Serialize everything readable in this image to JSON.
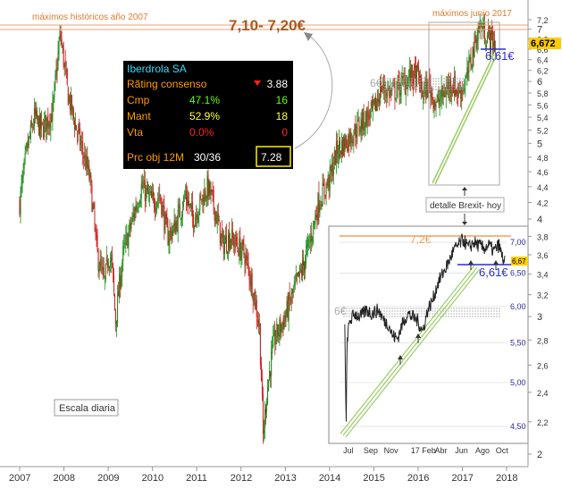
{
  "chart_data": [
    {
      "type": "candlestick",
      "description_title": "Iberdrola SA daily price",
      "x_ticks": [
        "2007",
        "2008",
        "2009",
        "2010",
        "2011",
        "2012",
        "2013",
        "2014",
        "2015",
        "2016",
        "2017",
        "2018"
      ],
      "y_ticks": [
        "2",
        "2,2",
        "2,4",
        "2,6",
        "2,8",
        "3",
        "3,2",
        "3,4",
        "3,6",
        "3,8",
        "4",
        "4,2",
        "4,4",
        "4,6",
        "4,8",
        "5",
        "5,2",
        "5,4",
        "5,6",
        "5,8",
        "6",
        "6,2",
        "6,4",
        "6,6",
        "6,8",
        "7",
        "7,2"
      ],
      "y_scale": "log",
      "ylim": [
        2.0,
        7.3
      ],
      "last_price_label": "6,672",
      "close_path": [
        [
          "2007-01",
          4.2
        ],
        [
          "2007-03",
          4.9
        ],
        [
          "2007-05",
          5.4
        ],
        [
          "2007-07",
          5.2
        ],
        [
          "2007-10",
          5.5
        ],
        [
          "2007-12",
          6.9
        ],
        [
          "2008-02",
          5.8
        ],
        [
          "2008-04",
          5.3
        ],
        [
          "2008-06",
          4.9
        ],
        [
          "2008-08",
          4.5
        ],
        [
          "2008-10",
          3.6
        ],
        [
          "2008-12",
          3.3
        ],
        [
          "2009-01",
          3.6
        ],
        [
          "2009-02",
          3.5
        ],
        [
          "2009-03",
          2.95
        ],
        [
          "2009-05",
          3.6
        ],
        [
          "2009-07",
          3.9
        ],
        [
          "2009-10",
          4.4
        ],
        [
          "2010-01",
          4.2
        ],
        [
          "2010-03",
          4.3
        ],
        [
          "2010-05",
          3.8
        ],
        [
          "2010-07",
          3.9
        ],
        [
          "2010-10",
          4.3
        ],
        [
          "2010-12",
          4.0
        ],
        [
          "2011-02",
          4.2
        ],
        [
          "2011-04",
          4.4
        ],
        [
          "2011-06",
          4.1
        ],
        [
          "2011-08",
          3.7
        ],
        [
          "2011-10",
          3.8
        ],
        [
          "2011-12",
          3.7
        ],
        [
          "2012-02",
          3.6
        ],
        [
          "2012-04",
          3.3
        ],
        [
          "2012-06",
          2.9
        ],
        [
          "2012-07",
          2.1
        ],
        [
          "2012-08",
          2.4
        ],
        [
          "2012-10",
          2.8
        ],
        [
          "2013-01",
          3.0
        ],
        [
          "2013-03",
          3.2
        ],
        [
          "2013-05",
          3.4
        ],
        [
          "2013-06",
          3.5
        ],
        [
          "2013-08",
          3.8
        ],
        [
          "2013-10",
          4.2
        ],
        [
          "2014-01",
          4.5
        ],
        [
          "2014-03",
          4.9
        ],
        [
          "2014-05",
          5.0
        ],
        [
          "2014-08",
          5.2
        ],
        [
          "2014-11",
          5.4
        ],
        [
          "2015-01",
          5.5
        ],
        [
          "2015-03",
          5.9
        ],
        [
          "2015-06",
          5.8
        ],
        [
          "2015-08",
          5.9
        ],
        [
          "2015-11",
          6.1
        ],
        [
          "2016-01",
          6.1
        ],
        [
          "2016-02",
          5.8
        ],
        [
          "2016-04",
          5.9
        ],
        [
          "2016-06",
          5.6
        ],
        [
          "2016-08",
          5.8
        ],
        [
          "2016-10",
          6.0
        ],
        [
          "2016-12",
          5.8
        ],
        [
          "2017-02",
          6.0
        ],
        [
          "2017-04",
          6.6
        ],
        [
          "2017-05",
          6.9
        ],
        [
          "2017-06",
          7.1
        ],
        [
          "2017-07",
          6.9
        ],
        [
          "2017-09",
          6.8
        ],
        [
          "2017-10",
          6.67
        ]
      ],
      "annotations": {
        "hist_high_label": "máximos históricos año 2007",
        "june_high_label": "máximos junio 2017",
        "target_range_label": "7,10- 7,20€",
        "support_label": "6,61€",
        "resistance_label": "6€",
        "detail_label": "detalle Brexit- hoy",
        "scale_label": "Escala diaria"
      },
      "info_box": {
        "name": "Iberdrola SA",
        "rows": [
          {
            "label": "Rãting consenso",
            "pct": "",
            "value": "3.88",
            "label_color": "#ff9900",
            "pct_color": "#ffffff",
            "value_color": "#ffffff"
          },
          {
            "label": "Cmp",
            "pct": "47.1%",
            "value": "16",
            "label_color": "#ff9900",
            "pct_color": "#66ff00",
            "value_color": "#66ff00"
          },
          {
            "label": "Mant",
            "pct": "52.9%",
            "value": "18",
            "label_color": "#ff9900",
            "pct_color": "#ffff33",
            "value_color": "#ffff33"
          },
          {
            "label": "Vta",
            "pct": "0.0%",
            "value": "0",
            "label_color": "#ff9900",
            "pct_color": "#ff2222",
            "value_color": "#ff2222"
          }
        ],
        "target_label": "Prc obj 12M",
        "target_count": "30/36",
        "target_value": "7.28",
        "name_color": "#33ddff",
        "target_box_color": "#ffee00"
      },
      "colors": {
        "up": "#1a8a1a",
        "down": "#cc1a1a",
        "annotation_orange": "#e07a2e",
        "support_blue": "#2a2ad9",
        "trend_green": "#9ccc66"
      }
    },
    {
      "type": "line",
      "description_title": "inset detail Brexit to today",
      "x_ticks": [
        "Jul",
        "Sep",
        "Nov",
        "17 Feb",
        "Abr",
        "Jun",
        "Ago",
        "Oct"
      ],
      "y_ticks": [
        "4,50",
        "5,00",
        "5,50",
        "6,00",
        "6,50",
        "7,00"
      ],
      "y_scale": "log",
      "ylim": [
        4.3,
        7.3
      ],
      "last_price_label": "6,67",
      "series": [
        {
          "x": [
            "2016-06-20",
            "2016-06-24",
            "2016-06-27",
            "2016-07-05",
            "2016-07-20",
            "2016-08-05",
            "2016-08-25",
            "2016-09-10",
            "2016-09-30",
            "2016-10-15",
            "2016-10-30",
            "2016-11-10",
            "2016-11-25",
            "2016-12-10",
            "2016-12-25",
            "2017-01-10",
            "2017-01-25",
            "2017-02-10",
            "2017-02-25",
            "2017-03-10",
            "2017-03-25",
            "2017-04-10",
            "2017-04-25",
            "2017-05-10",
            "2017-05-25",
            "2017-06-10",
            "2017-06-25",
            "2017-07-10",
            "2017-07-25",
            "2017-08-10",
            "2017-08-25",
            "2017-09-10",
            "2017-09-25",
            "2017-10-05",
            "2017-10-12"
          ],
          "values": [
            5.75,
            4.42,
            5.55,
            5.8,
            5.9,
            5.85,
            5.95,
            5.9,
            5.95,
            5.8,
            5.75,
            5.6,
            5.55,
            5.75,
            5.9,
            5.85,
            5.8,
            5.65,
            5.95,
            6.1,
            6.35,
            6.5,
            6.65,
            6.85,
            6.95,
            7.05,
            6.9,
            7.0,
            6.95,
            6.9,
            6.95,
            6.85,
            6.95,
            6.75,
            6.67
          ]
        }
      ],
      "annotations": {
        "target_label": "7,2€",
        "support_label": "6,61€",
        "resistance_label": "6€"
      }
    }
  ]
}
